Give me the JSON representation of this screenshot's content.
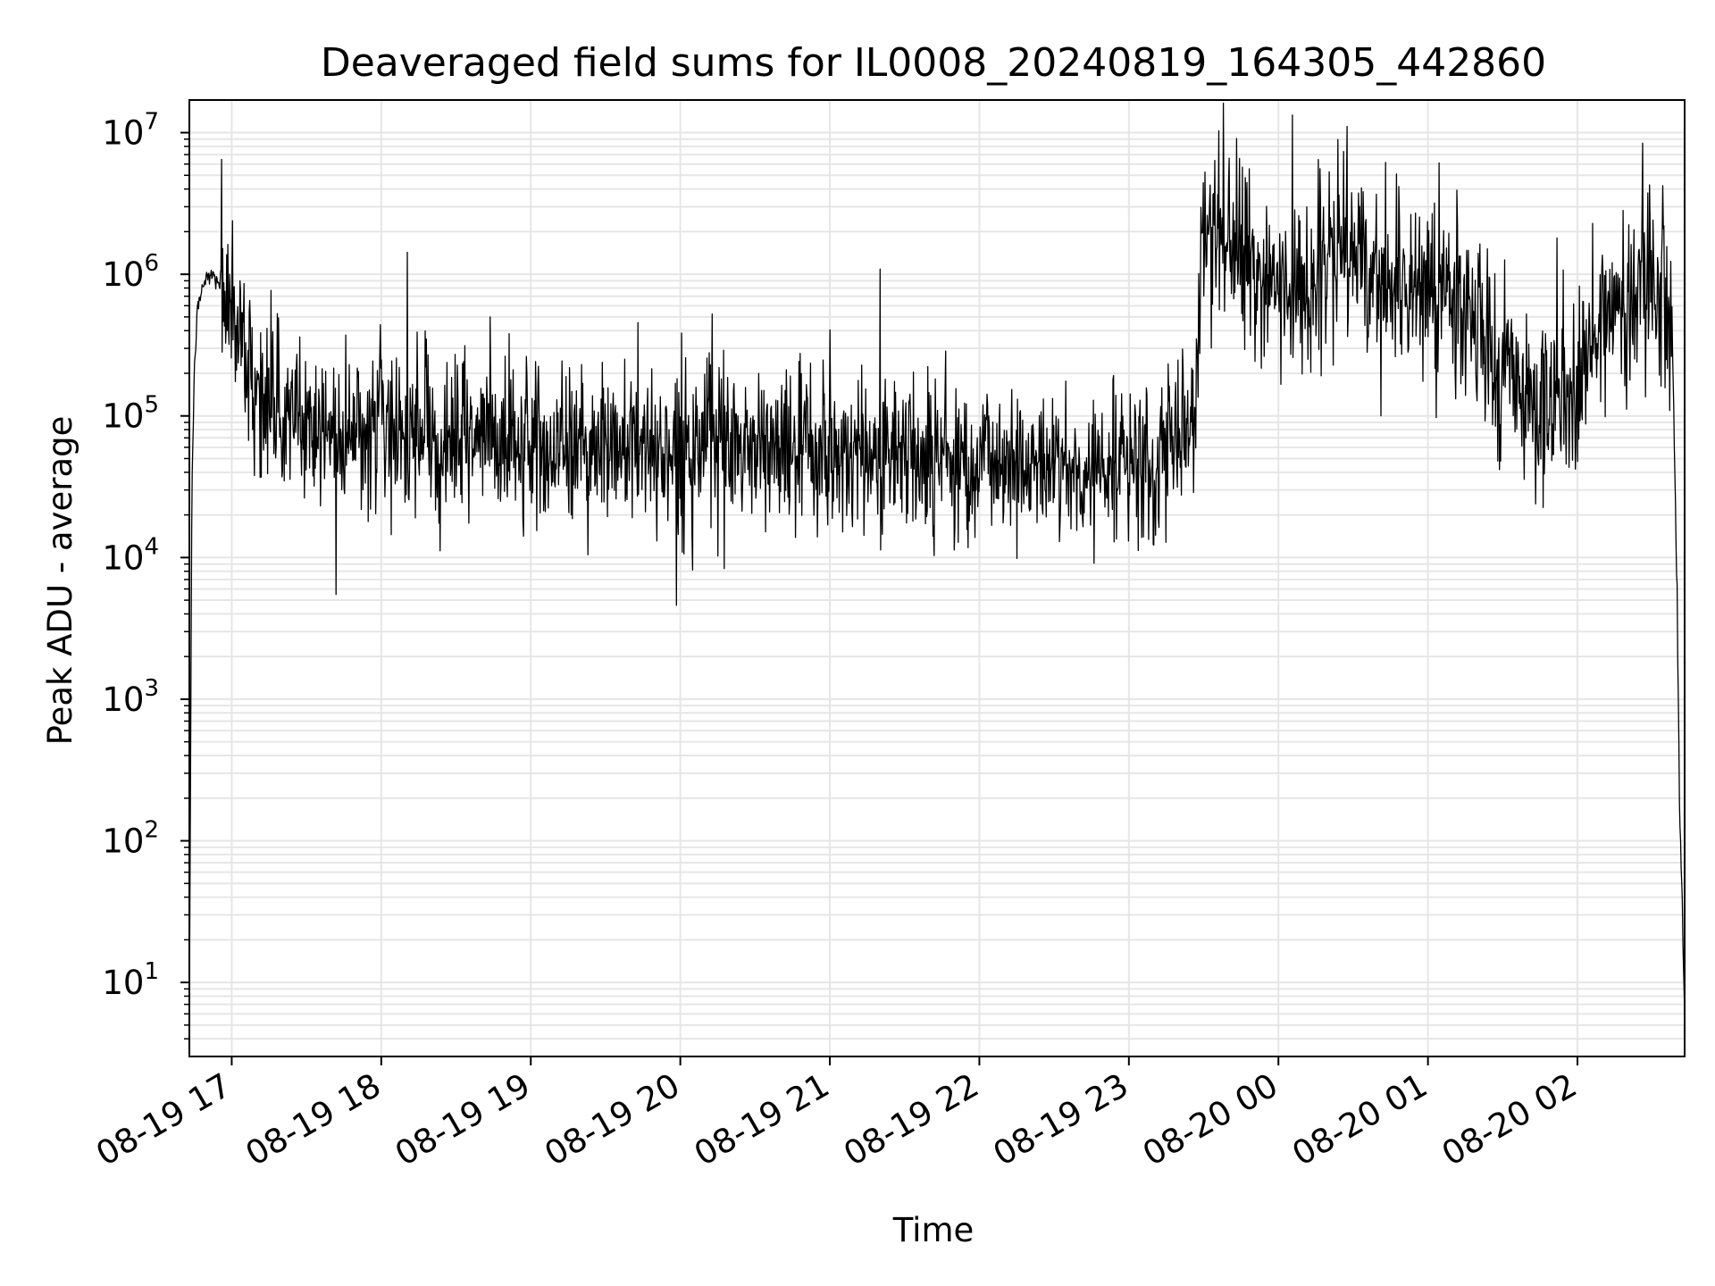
{
  "chart_data": {
    "type": "line",
    "title": "Deaveraged field sums for IL0008_20240819_164305_442860",
    "xlabel": "Time",
    "ylabel": "Peak ADU - average",
    "y_scale": "log",
    "x_tick_labels": [
      "08-19 17",
      "08-19 18",
      "08-19 19",
      "08-19 20",
      "08-19 21",
      "08-19 22",
      "08-19 23",
      "08-20 00",
      "08-20 01",
      "08-20 02"
    ],
    "y_tick_labels": [
      {
        "base": "10",
        "exp": "1"
      },
      {
        "base": "10",
        "exp": "2"
      },
      {
        "base": "10",
        "exp": "3"
      },
      {
        "base": "10",
        "exp": "4"
      },
      {
        "base": "10",
        "exp": "5"
      },
      {
        "base": "10",
        "exp": "6"
      },
      {
        "base": "10",
        "exp": "7"
      }
    ],
    "xlim": [
      "2024-08-19 16:43",
      "2024-08-20 02:43"
    ],
    "ylim": [
      3,
      17000000
    ],
    "grid": true,
    "legend": "none",
    "line_color": "#000000",
    "grid_color": "#e6e6e6",
    "series": [
      {
        "x": [
          "2024-08-19 16:43",
          "2024-08-19 16:44",
          "2024-08-19 16:45",
          "2024-08-19 16:46",
          "2024-08-19 16:48",
          "2024-08-19 16:51",
          "2024-08-19 16:55",
          "2024-08-19 17:00",
          "2024-08-19 17:05",
          "2024-08-19 17:10",
          "2024-08-19 17:20",
          "2024-08-19 17:30",
          "2024-08-19 17:45",
          "2024-08-19 18:00",
          "2024-08-19 18:15",
          "2024-08-19 18:30",
          "2024-08-19 18:45",
          "2024-08-19 19:00",
          "2024-08-19 19:30",
          "2024-08-19 20:00",
          "2024-08-19 20:30",
          "2024-08-19 21:00",
          "2024-08-19 21:30",
          "2024-08-19 22:00",
          "2024-08-19 22:30",
          "2024-08-19 23:00",
          "2024-08-19 23:15",
          "2024-08-19 23:25",
          "2024-08-19 23:30",
          "2024-08-19 23:45",
          "2024-08-20 00:00",
          "2024-08-20 00:15",
          "2024-08-20 00:30",
          "2024-08-20 00:45",
          "2024-08-20 01:00",
          "2024-08-20 01:15",
          "2024-08-20 01:30",
          "2024-08-20 01:45",
          "2024-08-20 02:00",
          "2024-08-20 02:15",
          "2024-08-20 02:30",
          "2024-08-20 02:38",
          "2024-08-20 02:40",
          "2024-08-20 02:41",
          "2024-08-20 02:42",
          "2024-08-20 02:43"
        ],
        "values": [
          5,
          30000,
          200000,
          500000,
          800000,
          1000000,
          900000,
          600000,
          300000,
          150000,
          100000,
          90000,
          80000,
          85000,
          75000,
          70000,
          65000,
          60000,
          62000,
          55000,
          60000,
          55000,
          55000,
          50000,
          45000,
          40000,
          50000,
          100000,
          2000000,
          1500000,
          700000,
          1000000,
          1500000,
          800000,
          900000,
          600000,
          200000,
          100000,
          150000,
          700000,
          1000000,
          400000,
          5000,
          150,
          40,
          5
        ]
      }
    ]
  }
}
